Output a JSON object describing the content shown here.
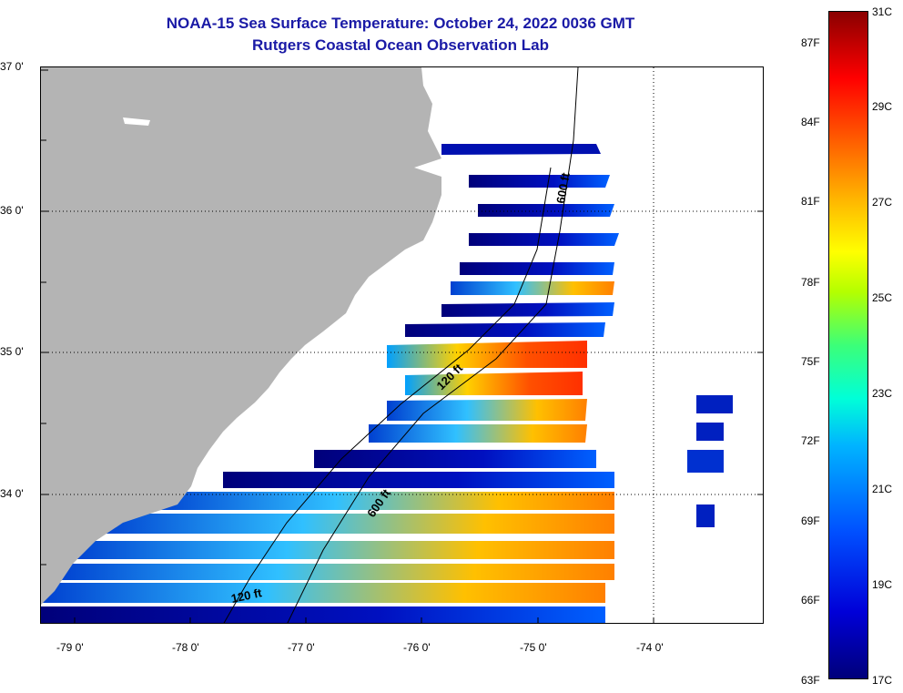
{
  "title": {
    "line1": "NOAA-15 Sea Surface Temperature:  October 24, 2022 0036 GMT",
    "line2": "Rutgers Coastal Ocean Observation Lab"
  },
  "map": {
    "land_color": "#b4b4b4",
    "no_data_color": "#ffffff",
    "lat_labels": [
      "37 0'",
      "36 0'",
      "35 0'",
      "34 0'"
    ],
    "lon_labels": [
      "-79 0'",
      "-78 0'",
      "-77 0'",
      "-76 0'",
      "-75 0'",
      "-74 0'"
    ],
    "isobaths": [
      "600 ft",
      "120 ft",
      "600 ft",
      "120 ft"
    ]
  },
  "colorbar": {
    "fahrenheit": [
      "87F",
      "84F",
      "81F",
      "78F",
      "75F",
      "72F",
      "69F",
      "66F",
      "63F"
    ],
    "celsius": [
      "31C",
      "29C",
      "27C",
      "25C",
      "23C",
      "21C",
      "19C",
      "17C"
    ]
  }
}
